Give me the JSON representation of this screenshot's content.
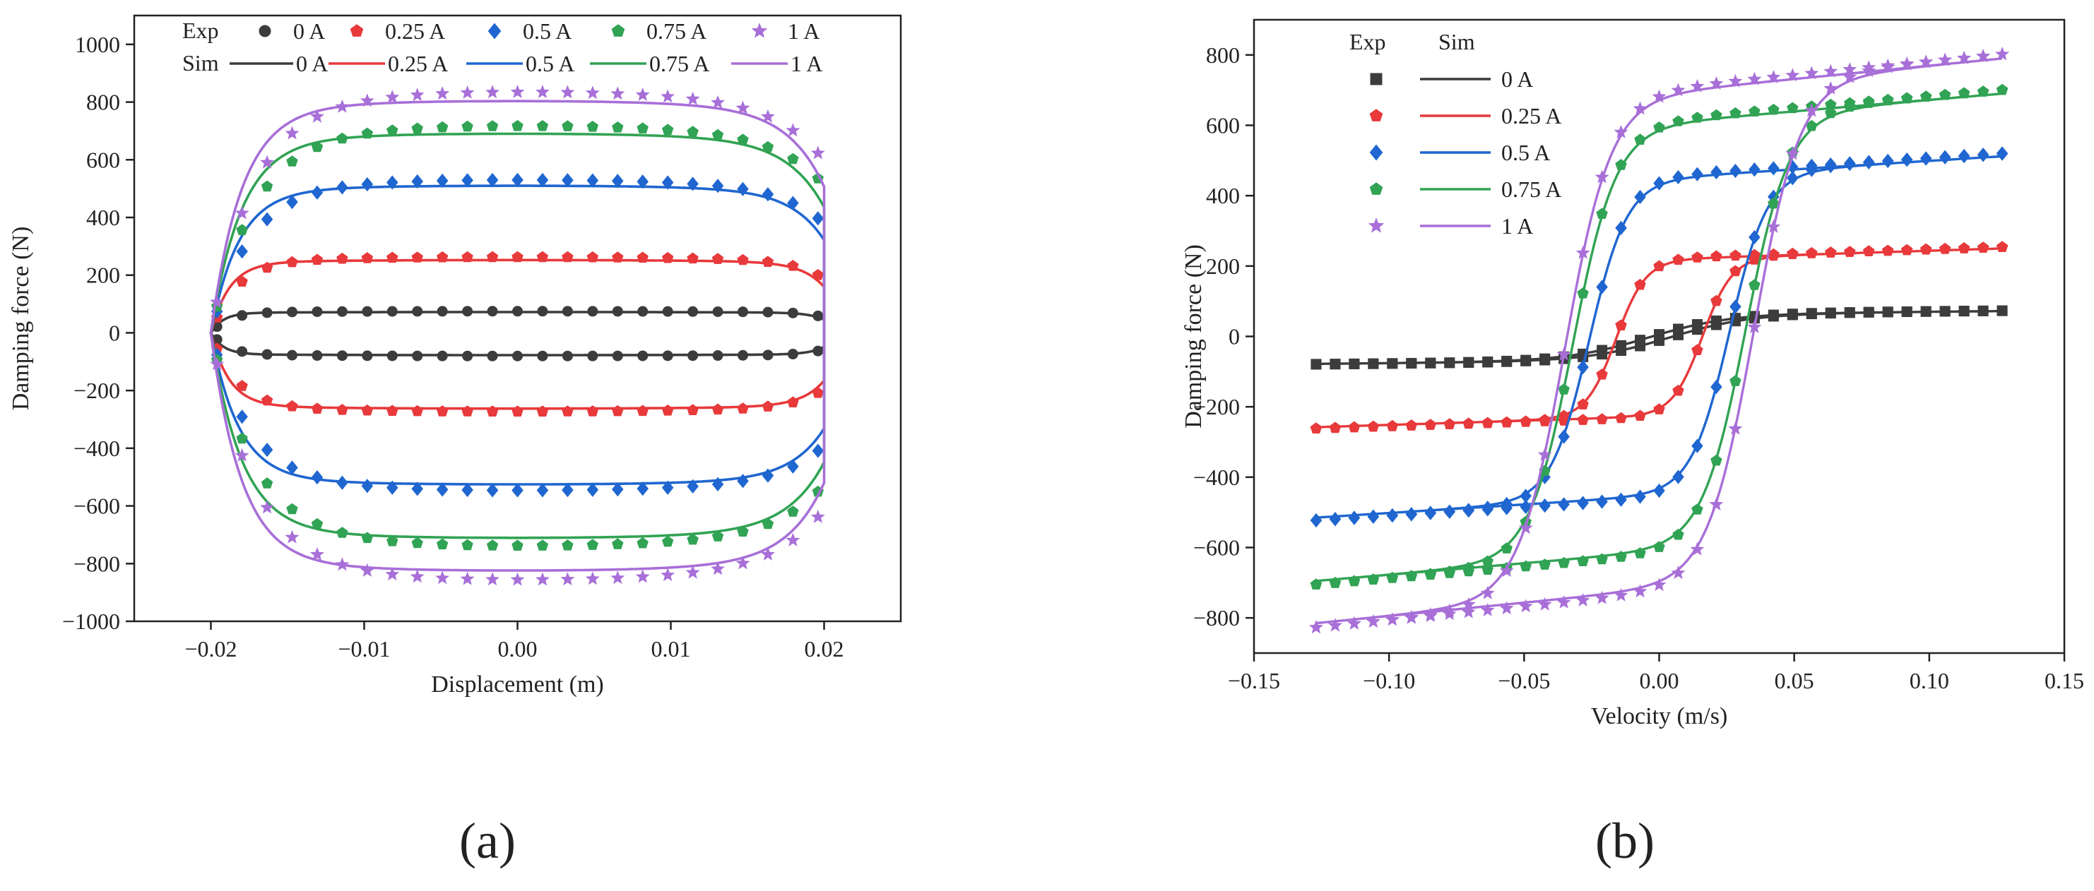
{
  "chart_data": [
    {
      "panel": "(a)",
      "type": "scatter+line",
      "xlabel": "Displacement (m)",
      "ylabel": "Damping force (N)",
      "xlim": [
        -0.025,
        0.025
      ],
      "ylim": [
        -1000,
        1100
      ],
      "xticks": [
        -0.02,
        -0.01,
        0.0,
        0.01,
        0.02
      ],
      "xtick_labels": [
        "−0.02",
        "−0.01",
        "0.00",
        "0.01",
        "0.02"
      ],
      "yticks": [
        -1000,
        -800,
        -600,
        -400,
        -200,
        0,
        200,
        400,
        600,
        800,
        1000
      ],
      "ytick_labels": [
        "−1000",
        "−800",
        "−600",
        "−400",
        "−200",
        "0",
        "200",
        "400",
        "600",
        "800",
        "1000"
      ],
      "legend": {
        "placement": "top",
        "exp_label": "Exp",
        "sim_label": "Sim",
        "entries": [
          "0 A",
          "0.25 A",
          "0.5 A",
          "0.75 A",
          "1 A"
        ]
      },
      "amplitude": 0.02,
      "series": [
        {
          "name": "0 A",
          "color": "#3c3c3c",
          "marker": "circle",
          "force_upper": 70,
          "force_lower": -75,
          "knee": 0.0008
        },
        {
          "name": "0.25 A",
          "color": "#e8393b",
          "marker": "pentagon",
          "force_upper": 245,
          "force_lower": -255,
          "knee": 0.0012
        },
        {
          "name": "0.5 A",
          "color": "#1f66d0",
          "marker": "diamond",
          "force_upper": 495,
          "force_lower": -510,
          "knee": 0.0018
        },
        {
          "name": "0.75 A",
          "color": "#31a354",
          "marker": "pentagon",
          "force_upper": 670,
          "force_lower": -690,
          "knee": 0.002
        },
        {
          "name": "1 A",
          "color": "#a86fd8",
          "marker": "star",
          "force_upper": 780,
          "force_lower": -800,
          "knee": 0.002
        }
      ]
    },
    {
      "panel": "(b)",
      "type": "scatter+line",
      "xlabel": "Velocity (m/s)",
      "ylabel": "Damping force (N)",
      "xlim": [
        -0.15,
        0.15
      ],
      "ylim": [
        -900,
        900
      ],
      "xticks": [
        -0.15,
        -0.1,
        -0.05,
        0.0,
        0.05,
        0.1,
        0.15
      ],
      "xtick_labels": [
        "−0.15",
        "−0.10",
        "−0.05",
        "0.00",
        "0.05",
        "0.10",
        "0.15"
      ],
      "yticks": [
        -800,
        -600,
        -400,
        -200,
        0,
        200,
        400,
        600,
        800
      ],
      "ytick_labels": [
        "−800",
        "−600",
        "−400",
        "−200",
        "0",
        "200",
        "400",
        "600",
        "800"
      ],
      "legend": {
        "placement": "top-left",
        "exp_label": "Exp",
        "sim_label": "Sim",
        "entries": [
          "0 A",
          "0.25 A",
          "0.5 A",
          "0.75 A",
          "1 A"
        ]
      },
      "velocity_range": [
        -0.127,
        0.127
      ],
      "series": [
        {
          "name": "0 A",
          "color": "#3c3c3c",
          "marker": "square",
          "force_at_vmax": 72,
          "force_at_vmin": -78,
          "hysteresis_shift": 0.004,
          "transition_width": 0.03
        },
        {
          "name": "0.25 A",
          "color": "#e8393b",
          "marker": "pentagon",
          "force_at_vmax": 250,
          "force_at_vmin": -258,
          "hysteresis_shift": 0.016,
          "transition_width": 0.011
        },
        {
          "name": "0.5 A",
          "color": "#1f66d0",
          "marker": "diamond",
          "force_at_vmax": 512,
          "force_at_vmin": -515,
          "hysteresis_shift": 0.026,
          "transition_width": 0.014
        },
        {
          "name": "0.75 A",
          "color": "#31a354",
          "marker": "pentagon",
          "force_at_vmax": 690,
          "force_at_vmin": -695,
          "hysteresis_shift": 0.032,
          "transition_width": 0.016
        },
        {
          "name": "1 A",
          "color": "#a86fd8",
          "marker": "star",
          "force_at_vmax": 790,
          "force_at_vmin": -815,
          "hysteresis_shift": 0.035,
          "transition_width": 0.017
        }
      ]
    }
  ],
  "captions": {
    "a": "(a)",
    "b": "(b)"
  }
}
